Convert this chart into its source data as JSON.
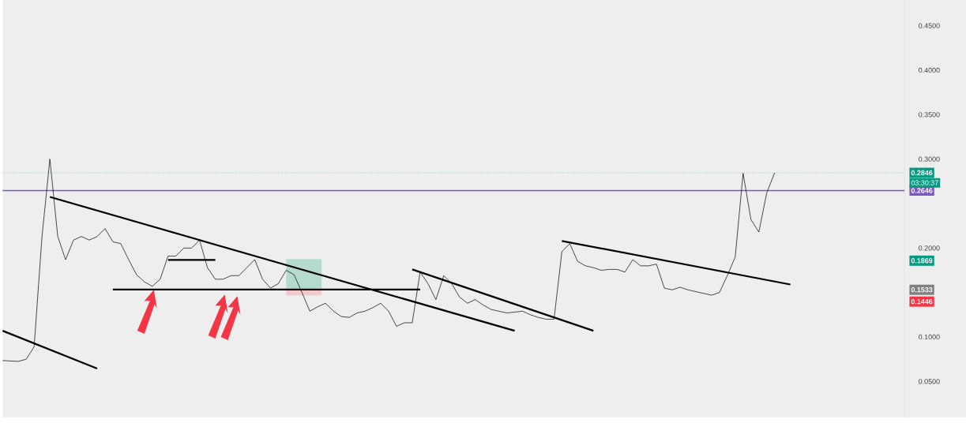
{
  "chart_data": {
    "type": "line",
    "tick_labels": "y",
    "categories": [
      null,
      null,
      null,
      null,
      null,
      null,
      null,
      null,
      null,
      null,
      null,
      null,
      null,
      null,
      null,
      null,
      null,
      null,
      null,
      null,
      null,
      null,
      null,
      null,
      null,
      null,
      null,
      null,
      null,
      null,
      null,
      null,
      null,
      null,
      null,
      null,
      null,
      null,
      null,
      null,
      null,
      null,
      null,
      null,
      null,
      null,
      null,
      null,
      null,
      null,
      null,
      null,
      null,
      null,
      null,
      null,
      null,
      null,
      null,
      null,
      null,
      null,
      null,
      null,
      null,
      null,
      null,
      null,
      null,
      null,
      null,
      null,
      null,
      null,
      null,
      null,
      null,
      null,
      null,
      null,
      null,
      null,
      null,
      null,
      null,
      null,
      null,
      null,
      null,
      null,
      null,
      null,
      null,
      null,
      null,
      null,
      null,
      null,
      null,
      null,
      null,
      null,
      null,
      null,
      null,
      null,
      null,
      null,
      null,
      null,
      null,
      null,
      null,
      null,
      null
    ],
    "ylim": [
      0.0097,
      0.4788
    ],
    "yticks": [
      {
        "value": 0.05,
        "label": "0.0500"
      },
      {
        "value": 0.1,
        "label": "0.1000"
      },
      {
        "value": 0.2,
        "label": "0.2000"
      },
      {
        "value": 0.3,
        "label": "0.3000"
      },
      {
        "value": 0.35,
        "label": "0.3500"
      },
      {
        "value": 0.4,
        "label": "0.4000"
      },
      {
        "value": 0.45,
        "label": "0.4500"
      }
    ],
    "grid": false,
    "series": [
      {
        "color": "#000000",
        "values": [
          0.0735,
          0.073,
          0.0726,
          0.075,
          0.089,
          0.213,
          0.3,
          0.213,
          0.187,
          0.209,
          0.213,
          0.209,
          0.213,
          0.222,
          0.207,
          0.205,
          0.187,
          0.17,
          0.162,
          0.157,
          0.165,
          0.191,
          0.191,
          0.2,
          0.2,
          0.209,
          0.178,
          0.165,
          0.165,
          0.169,
          0.169,
          0.178,
          0.187,
          0.165,
          0.155,
          0.16,
          0.175,
          0.17,
          0.15,
          0.129,
          0.134,
          0.138,
          0.129,
          0.123,
          0.122,
          0.127,
          0.129,
          0.133,
          0.138,
          0.129,
          0.112,
          0.116,
          0.116,
          0.173,
          0.16,
          0.142,
          0.169,
          0.16,
          0.145,
          0.138,
          0.142,
          0.136,
          0.131,
          0.129,
          0.127,
          0.128,
          0.129,
          0.125,
          0.122,
          0.12,
          0.12,
          0.196,
          0.205,
          0.185,
          0.18,
          0.178,
          0.175,
          0.176,
          0.176,
          0.173,
          0.187,
          0.18,
          0.18,
          0.182,
          0.155,
          0.153,
          0.156,
          0.153,
          0.151,
          0.149,
          0.147,
          0.15,
          0.169,
          0.19,
          0.284,
          0.232,
          0.218,
          0.262,
          0.2846,
          null,
          null,
          null,
          null,
          null,
          null,
          null,
          null,
          null,
          null,
          null,
          null,
          null,
          null,
          null,
          null
        ]
      },
      {
        "color": "#000000",
        "values": [
          0.107,
          null,
          null,
          null,
          null,
          null,
          null,
          null,
          null,
          null,
          null,
          null,
          0.0646,
          null,
          null,
          null,
          null,
          null,
          null,
          null,
          null,
          null,
          null,
          null,
          null,
          null,
          null,
          null,
          null,
          null,
          null,
          null,
          null,
          null,
          null,
          null,
          null,
          null,
          null,
          null,
          null,
          null,
          null,
          null,
          null,
          null,
          null,
          null,
          null,
          null,
          null,
          null,
          null,
          null,
          null,
          null,
          null,
          null,
          null,
          null,
          null,
          null,
          null,
          null,
          null,
          null,
          null,
          null,
          null,
          null,
          null,
          null,
          null,
          null,
          null,
          null,
          null,
          null,
          null,
          null,
          null,
          null,
          null,
          null,
          null,
          null,
          null,
          null,
          null,
          null,
          null,
          null,
          null,
          null,
          null,
          null,
          null,
          null,
          null,
          null,
          null,
          null,
          null,
          null,
          null,
          null,
          null,
          null,
          null,
          null,
          null,
          null,
          null,
          null,
          null
        ]
      },
      {
        "color": "#000000",
        "values": [
          null,
          null,
          null,
          null,
          null,
          null,
          0.2575,
          null,
          null,
          null,
          null,
          null,
          null,
          null,
          null,
          null,
          null,
          null,
          null,
          null,
          null,
          null,
          null,
          null,
          null,
          null,
          null,
          null,
          null,
          null,
          null,
          null,
          null,
          null,
          null,
          null,
          null,
          null,
          null,
          null,
          null,
          null,
          null,
          null,
          null,
          null,
          null,
          null,
          null,
          null,
          null,
          null,
          null,
          null,
          null,
          null,
          null,
          null,
          null,
          null,
          null,
          null,
          null,
          null,
          null,
          0.107,
          null,
          null,
          null,
          null,
          null,
          null,
          null,
          null,
          null,
          null,
          null,
          null,
          null,
          null,
          null,
          null,
          null,
          null,
          null,
          null,
          null,
          null,
          null,
          null,
          null,
          null,
          null,
          null,
          null,
          null,
          null,
          null,
          null,
          null,
          null,
          null,
          null,
          null,
          null,
          null,
          null,
          null,
          null,
          null,
          null,
          null,
          null,
          null,
          null
        ]
      },
      {
        "color": "#000000",
        "values": [
          null,
          null,
          null,
          null,
          null,
          null,
          null,
          null,
          null,
          null,
          null,
          null,
          null,
          null,
          0.1533,
          null,
          null,
          null,
          null,
          null,
          null,
          null,
          null,
          null,
          null,
          null,
          null,
          null,
          null,
          null,
          null,
          null,
          null,
          null,
          null,
          null,
          null,
          null,
          null,
          null,
          null,
          null,
          null,
          null,
          null,
          null,
          null,
          null,
          null,
          null,
          null,
          null,
          null,
          0.1533,
          null,
          null,
          null,
          null,
          null,
          null,
          null,
          null,
          null,
          null,
          null,
          null,
          null,
          null,
          null,
          null,
          null,
          null,
          null,
          null,
          null,
          null,
          null,
          null,
          null,
          null,
          null,
          null,
          null,
          null,
          null,
          null,
          null,
          null,
          null,
          null,
          null,
          null,
          null,
          null,
          null,
          null,
          null,
          null,
          null,
          null,
          null,
          null,
          null,
          null,
          null,
          null,
          null,
          null,
          null,
          null,
          null,
          null,
          null,
          null,
          null
        ]
      },
      {
        "color": "#000000",
        "values": [
          null,
          null,
          null,
          null,
          null,
          null,
          null,
          null,
          null,
          null,
          null,
          null,
          null,
          null,
          null,
          null,
          null,
          null,
          null,
          null,
          null,
          0.1867,
          null,
          null,
          null,
          null,
          null,
          0.1867,
          null,
          null,
          null,
          null,
          null,
          null,
          null,
          null,
          null,
          null,
          null,
          null,
          null,
          null,
          null,
          null,
          null,
          null,
          null,
          null,
          null,
          null,
          null,
          null,
          null,
          null,
          null,
          null,
          null,
          null,
          null,
          null,
          null,
          null,
          null,
          null,
          null,
          null,
          null,
          null,
          null,
          null,
          null,
          null,
          null,
          null,
          null,
          null,
          null,
          null,
          null,
          null,
          null,
          null,
          null,
          null,
          null,
          null,
          null,
          null,
          null,
          null,
          null,
          null,
          null,
          null,
          null,
          null,
          null,
          null,
          null,
          null,
          null,
          null,
          null,
          null,
          null,
          null,
          null,
          null,
          null,
          null,
          null,
          null,
          null,
          null,
          null
        ]
      },
      {
        "color": "#000000",
        "values": [
          null,
          null,
          null,
          null,
          null,
          null,
          null,
          null,
          null,
          null,
          null,
          null,
          null,
          null,
          null,
          null,
          null,
          null,
          null,
          null,
          null,
          null,
          null,
          null,
          null,
          null,
          null,
          null,
          null,
          null,
          null,
          null,
          null,
          null,
          null,
          null,
          null,
          null,
          null,
          null,
          null,
          null,
          null,
          null,
          null,
          null,
          null,
          null,
          null,
          null,
          null,
          null,
          0.176,
          null,
          null,
          null,
          null,
          null,
          null,
          null,
          null,
          null,
          null,
          null,
          null,
          null,
          null,
          null,
          null,
          null,
          null,
          null,
          null,
          null,
          null,
          0.107,
          null,
          null,
          null,
          null,
          null,
          null,
          null,
          null,
          null,
          null,
          null,
          null,
          null,
          null,
          null,
          null,
          null,
          null,
          null,
          null,
          null,
          null,
          null,
          null,
          null,
          null,
          null,
          null,
          null,
          null,
          null,
          null,
          null,
          null,
          null,
          null,
          null,
          null,
          null
        ]
      },
      {
        "color": "#000000",
        "values": [
          null,
          null,
          null,
          null,
          null,
          null,
          null,
          null,
          null,
          null,
          null,
          null,
          null,
          null,
          null,
          null,
          null,
          null,
          null,
          null,
          null,
          null,
          null,
          null,
          null,
          null,
          null,
          null,
          null,
          null,
          null,
          null,
          null,
          null,
          null,
          null,
          null,
          null,
          null,
          null,
          null,
          null,
          null,
          null,
          null,
          null,
          null,
          null,
          null,
          null,
          null,
          null,
          null,
          null,
          null,
          null,
          null,
          null,
          null,
          null,
          null,
          null,
          null,
          null,
          null,
          null,
          null,
          null,
          null,
          null,
          null,
          0.208,
          null,
          null,
          null,
          null,
          null,
          null,
          null,
          null,
          null,
          null,
          null,
          null,
          null,
          null,
          null,
          null,
          null,
          null,
          null,
          null,
          null,
          null,
          null,
          null,
          null,
          null,
          null,
          null,
          0.159,
          null,
          null,
          null,
          null,
          null,
          null,
          null,
          null,
          null,
          null,
          null,
          null,
          null,
          null
        ]
      }
    ],
    "ref_lines": [
      {
        "axis": "y",
        "value": 0.2846,
        "label": "0.2846",
        "color": "#089981",
        "line_style": "dotted"
      },
      {
        "axis": "y",
        "value": 0.2646,
        "label": "0.2646",
        "color": "#7e57c2",
        "line_style": "solid"
      }
    ],
    "annotations": [
      "03:30:37",
      "0.1869",
      "0.1533",
      "0.1446"
    ]
  }
}
